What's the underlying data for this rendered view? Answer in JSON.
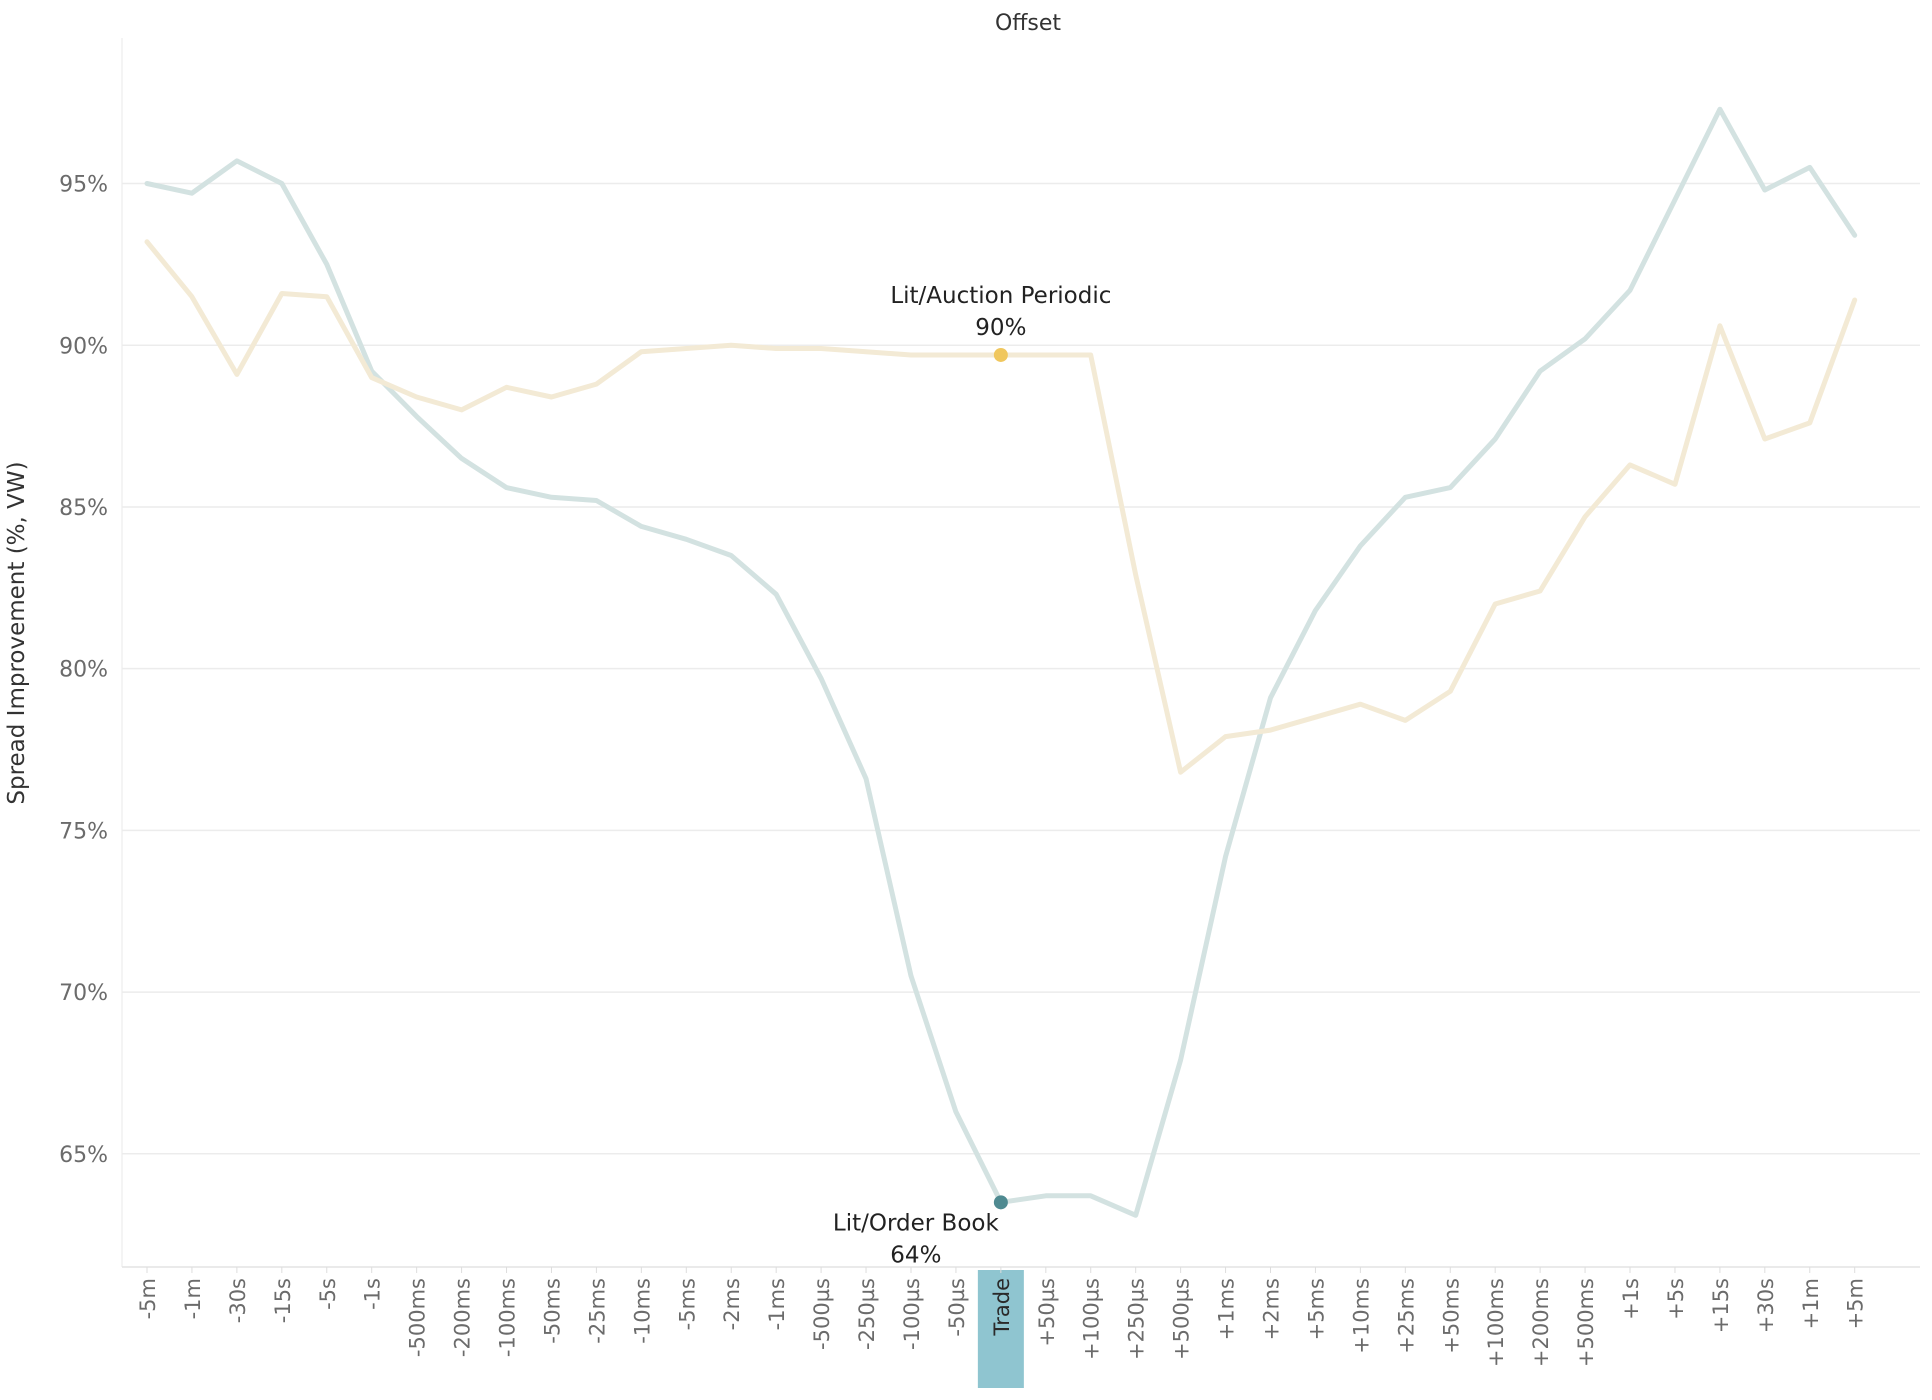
{
  "chart_data": {
    "type": "line",
    "title": "Offset",
    "ylabel": "Spread Improvement (%, VW)",
    "xlabel": "",
    "ylim": [
      61.5,
      99.5
    ],
    "y_ticks": [
      "65%",
      "70%",
      "75%",
      "80%",
      "85%",
      "90%",
      "95%"
    ],
    "y_tick_values": [
      65,
      70,
      75,
      80,
      85,
      90,
      95
    ],
    "grid": "horizontal",
    "highlight_category": "Trade",
    "highlight_color": "#8fc5d0",
    "categories": [
      "-5m",
      "-1m",
      "-30s",
      "-15s",
      "-5s",
      "-1s",
      "-500ms",
      "-200ms",
      "-100ms",
      "-50ms",
      "-25ms",
      "-10ms",
      "-5ms",
      "-2ms",
      "-1ms",
      "-500µs",
      "-250µs",
      "-100µs",
      "-50µs",
      "Trade",
      "+50µs",
      "+100µs",
      "+250µs",
      "+500µs",
      "+1ms",
      "+2ms",
      "+5ms",
      "+10ms",
      "+25ms",
      "+50ms",
      "+100ms",
      "+200ms",
      "+500ms",
      "+1s",
      "+5s",
      "+15s",
      "+30s",
      "+1m",
      "+5m"
    ],
    "series": [
      {
        "name": "Lit/Order Book",
        "color": "#d3e2e1",
        "marker_color": "#4f8a91",
        "values": [
          95.0,
          94.7,
          95.7,
          95.0,
          92.5,
          89.2,
          87.8,
          86.5,
          85.6,
          85.3,
          85.2,
          84.4,
          84.0,
          83.5,
          82.3,
          79.7,
          76.6,
          70.5,
          66.3,
          63.5,
          63.7,
          63.7,
          63.1,
          67.9,
          74.2,
          79.1,
          81.8,
          83.8,
          85.3,
          85.6,
          87.1,
          89.2,
          90.2,
          91.7,
          94.5,
          97.3,
          94.8,
          95.5,
          93.4
        ],
        "annotation": {
          "category": "Trade",
          "name": "Lit/Order Book",
          "value_label": "64%"
        }
      },
      {
        "name": "Lit/Auction Periodic",
        "color": "#f3ead5",
        "marker_color": "#f0c75e",
        "values": [
          93.2,
          91.5,
          89.1,
          91.6,
          91.5,
          89.0,
          88.4,
          88.0,
          88.7,
          88.4,
          88.8,
          89.8,
          89.9,
          90.0,
          89.9,
          89.9,
          89.8,
          89.7,
          89.7,
          89.7,
          89.7,
          89.7,
          82.9,
          76.8,
          77.9,
          78.1,
          78.5,
          78.9,
          78.4,
          79.3,
          82.0,
          82.4,
          84.7,
          86.3,
          85.7,
          90.6,
          87.1,
          87.6,
          91.4
        ],
        "annotation": {
          "category": "Trade",
          "name": "Lit/Auction Periodic",
          "value_label": "90%"
        }
      }
    ]
  }
}
